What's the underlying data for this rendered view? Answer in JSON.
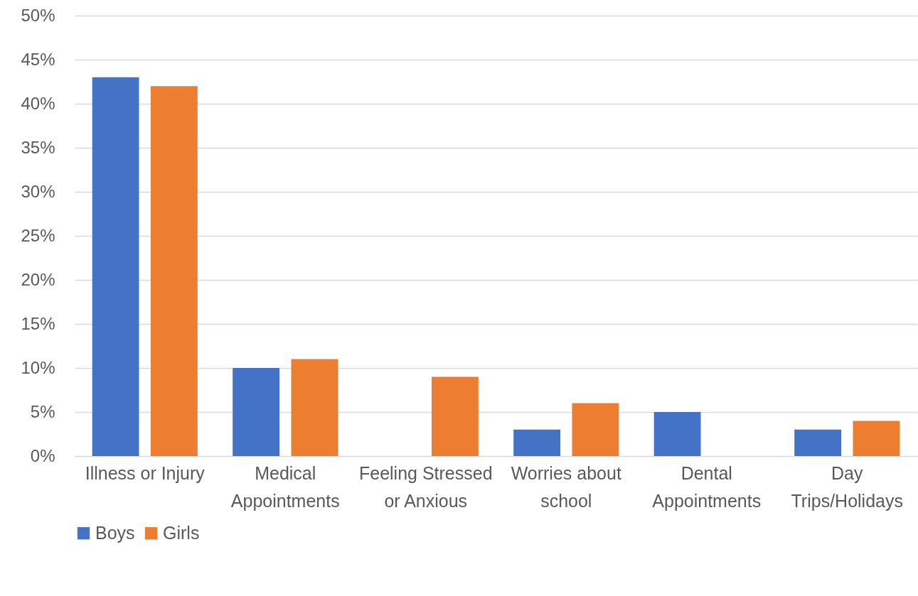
{
  "chart_data": {
    "type": "bar",
    "categories": [
      "Illness or Injury",
      "Medical Appointments",
      "Feeling Stressed or Anxious",
      "Worries about school",
      "Dental Appointments",
      "Day Trips/Holidays"
    ],
    "series": [
      {
        "name": "Boys",
        "color": "#4472c4",
        "values": [
          43,
          10,
          0,
          3,
          5,
          3
        ]
      },
      {
        "name": "Girls",
        "color": "#ed7d31",
        "values": [
          42,
          11,
          9,
          6,
          0,
          4
        ]
      }
    ],
    "ylim": [
      0,
      50
    ],
    "yticks": [
      {
        "value": 0,
        "label": "0%"
      },
      {
        "value": 5,
        "label": "5%"
      },
      {
        "value": 10,
        "label": "10%"
      },
      {
        "value": 15,
        "label": "15%"
      },
      {
        "value": 20,
        "label": "20%"
      },
      {
        "value": 25,
        "label": "25%"
      },
      {
        "value": 30,
        "label": "30%"
      },
      {
        "value": 35,
        "label": "35%"
      },
      {
        "value": 40,
        "label": "40%"
      },
      {
        "value": 45,
        "label": "45%"
      },
      {
        "value": 50,
        "label": "50%"
      }
    ],
    "grid": "y",
    "legend": "bottom"
  }
}
